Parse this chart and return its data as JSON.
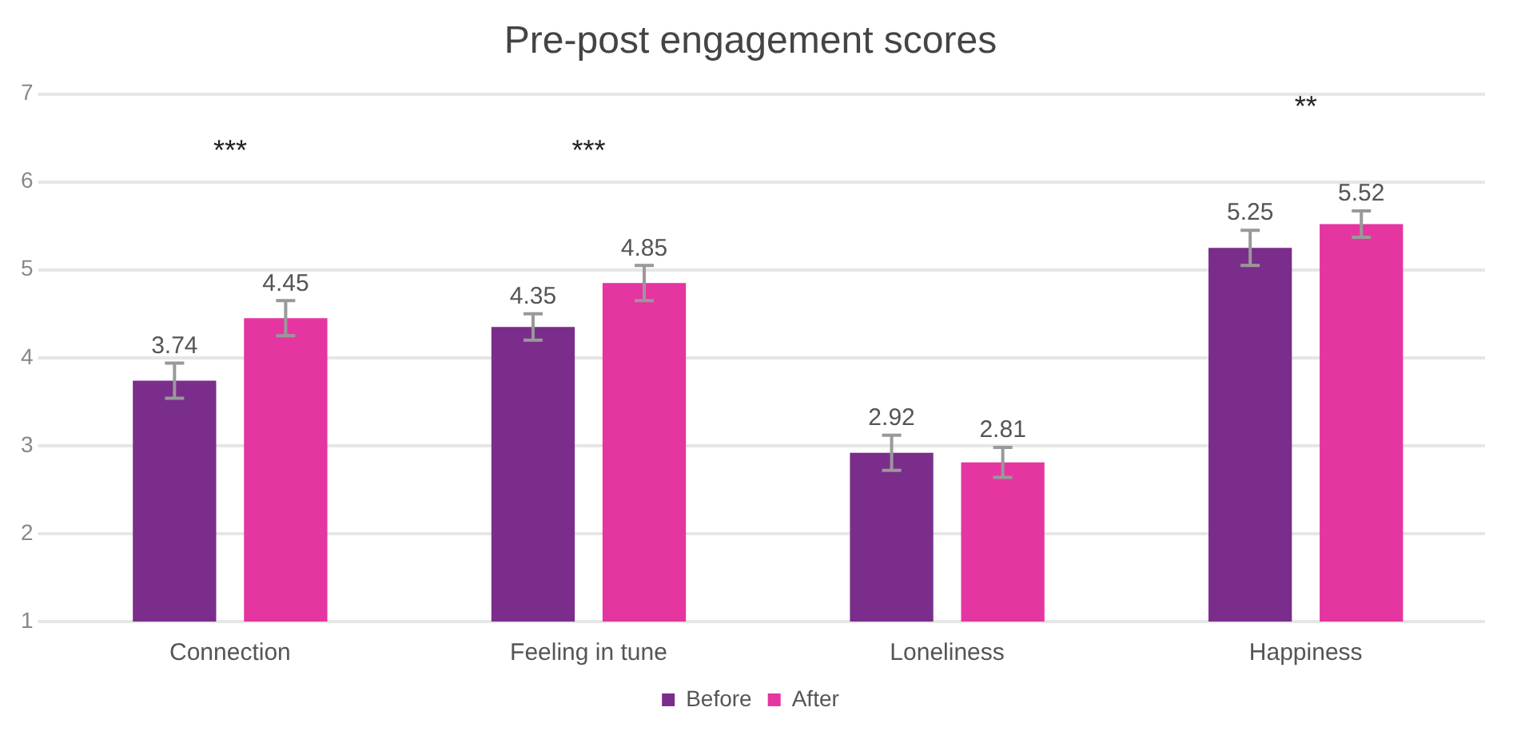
{
  "chart_data": {
    "type": "bar",
    "title": "Pre-post engagement scores",
    "categories": [
      "Connection",
      "Feeling in tune",
      "Loneliness",
      "Happiness"
    ],
    "series": [
      {
        "name": "Before",
        "color": "#7b2d8b",
        "values": [
          3.74,
          4.35,
          2.92,
          5.25
        ],
        "errors": [
          0.2,
          0.15,
          0.2,
          0.2
        ]
      },
      {
        "name": "After",
        "color": "#e535a0",
        "values": [
          4.45,
          4.85,
          2.81,
          5.52
        ],
        "errors": [
          0.2,
          0.2,
          0.17,
          0.15
        ]
      }
    ],
    "ylim": [
      1,
      7
    ],
    "yticks": [
      1,
      2,
      3,
      4,
      5,
      6,
      7
    ],
    "grid": "y",
    "legend": "bottom",
    "data_labels": true,
    "annotations": [
      "***",
      "***",
      "**"
    ]
  }
}
